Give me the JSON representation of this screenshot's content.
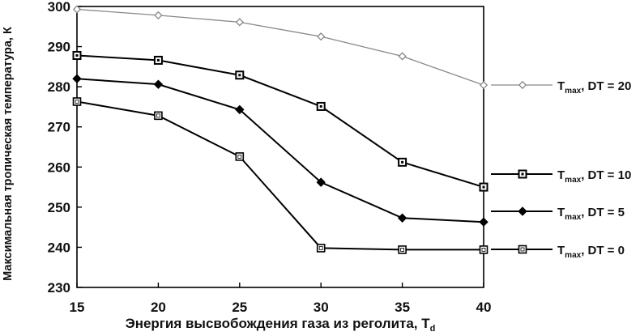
{
  "chart_data": {
    "type": "line",
    "xlabel": "Энергия высвобождения газа из реголита, T",
    "xlabel_subscript": "d",
    "ylabel": "Максимальная тропическая температура, К",
    "xlim": [
      15,
      40
    ],
    "ylim": [
      230,
      300
    ],
    "x_ticks": [
      15,
      20,
      25,
      30,
      35,
      40
    ],
    "y_ticks": [
      230,
      240,
      250,
      260,
      270,
      280,
      290,
      300
    ],
    "x": [
      15,
      20,
      25,
      30,
      35,
      40
    ],
    "grid": false,
    "legend_placement": "right, next to each series' last point",
    "series": [
      {
        "name": "T",
        "name_subscript": "max",
        "name_suffix": ", DT = 20",
        "marker": "open-diamond",
        "color": "#888888",
        "values": [
          299.3,
          297.8,
          296.1,
          292.5,
          287.6,
          280.4
        ]
      },
      {
        "name": "T",
        "name_subscript": "max",
        "name_suffix": ", DT = 10",
        "marker": "dotted-square",
        "color": "#000000",
        "values": [
          287.8,
          286.6,
          282.9,
          275.1,
          261.2,
          255.0
        ]
      },
      {
        "name": "T",
        "name_subscript": "max",
        "name_suffix": ", DT = 5",
        "marker": "filled-diamond",
        "color": "#000000",
        "values": [
          282.0,
          280.6,
          274.3,
          256.2,
          247.3,
          246.3
        ]
      },
      {
        "name": "T",
        "name_subscript": "max",
        "name_suffix": ", DT = 0",
        "marker": "open-square",
        "color": "#000000",
        "values": [
          276.3,
          272.8,
          262.6,
          239.8,
          239.4,
          239.4
        ]
      }
    ]
  }
}
